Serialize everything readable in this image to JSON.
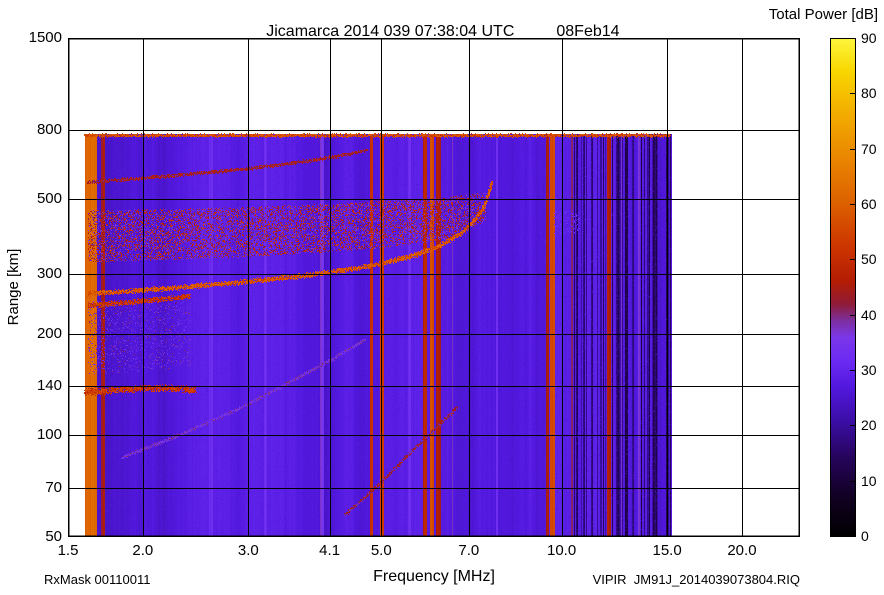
{
  "header": {
    "title": "Jicamarca 2014 039 07:38:04 UTC",
    "date": "08Feb14",
    "colorbar_title": "Total Power [dB]"
  },
  "footer": {
    "rxmask": "RxMask 00110011",
    "frequency_label": "Frequency [MHz]",
    "filename": "VIPIR  JM91J_2014039073804.RIQ"
  },
  "chart_data": {
    "type": "heatmap",
    "title": "Jicamarca 2014 039 07:38:04 UTC  08Feb14",
    "xlabel": "Frequency [MHz]",
    "ylabel": "Range [km]",
    "x_scale": "log",
    "y_scale": "log",
    "xlim": [
      1.5,
      25
    ],
    "ylim": [
      50,
      1500
    ],
    "x_ticks": [
      2.0,
      3.0,
      4.1,
      5.0,
      7.0,
      10.0,
      15.0,
      20.0
    ],
    "x_tick_labels": [
      "2.0",
      "3.0",
      "4.1",
      "5.0",
      "7.0",
      "10.0",
      "15.0",
      "20.0"
    ],
    "x_edge_tick": 1.5,
    "x_edge_tick_label": "1.5",
    "y_ticks": [
      70,
      100,
      140,
      200,
      300,
      500,
      800
    ],
    "y_tick_labels": [
      "70",
      "100",
      "140",
      "200",
      "300",
      "500",
      "800"
    ],
    "y_edge_ticks": [
      50,
      1500
    ],
    "y_edge_tick_labels": [
      "50",
      "1500"
    ],
    "grid": true,
    "colorbar": {
      "label": "Total Power [dB]",
      "min": 0,
      "max": 90,
      "ticks": [
        0,
        10,
        20,
        30,
        40,
        50,
        60,
        70,
        80,
        90
      ],
      "stops": [
        [
          0,
          "#000000"
        ],
        [
          7,
          "#110122"
        ],
        [
          14,
          "#250459"
        ],
        [
          21,
          "#3b0ea6"
        ],
        [
          27,
          "#5218de"
        ],
        [
          32,
          "#6c2bf2"
        ],
        [
          36,
          "#7b37e9"
        ],
        [
          39,
          "#7d2f9e"
        ],
        [
          42,
          "#8f1c38"
        ],
        [
          46,
          "#b21c04"
        ],
        [
          52,
          "#cb3300"
        ],
        [
          60,
          "#dc5f00"
        ],
        [
          68,
          "#e98400"
        ],
        [
          76,
          "#f2aa00"
        ],
        [
          84,
          "#f8d600"
        ],
        [
          90,
          "#fdf53c"
        ]
      ]
    },
    "data_extent": {
      "f": [
        1.6,
        15.2
      ],
      "range_km": [
        50,
        780
      ]
    },
    "background_db": 27,
    "features": {
      "stripes": [
        [
          1.6,
          1.68,
          62
        ],
        [
          1.7,
          1.73,
          45
        ],
        [
          2.58,
          2.62,
          33
        ],
        [
          3.18,
          3.22,
          33
        ],
        [
          3.95,
          4.02,
          36
        ],
        [
          4.79,
          4.85,
          50
        ],
        [
          4.98,
          5.05,
          53
        ],
        [
          5.55,
          5.6,
          34
        ],
        [
          5.88,
          5.95,
          48
        ],
        [
          6.02,
          6.12,
          56
        ],
        [
          6.18,
          6.28,
          46
        ],
        [
          6.55,
          6.6,
          36
        ],
        [
          7.78,
          7.84,
          34
        ],
        [
          9.42,
          9.52,
          44
        ],
        [
          9.58,
          9.74,
          56
        ],
        [
          10.38,
          10.44,
          40
        ],
        [
          11.9,
          12.08,
          46
        ],
        [
          12.55,
          12.62,
          38
        ],
        [
          13.4,
          13.5,
          36
        ]
      ],
      "dark_band": {
        "f": [
          10.28,
          15.2
        ],
        "prob": 0.45,
        "db": [
          11,
          22
        ]
      },
      "traces": [
        {
          "pts": [
            [
              1.62,
              262
            ],
            [
              2.2,
              272
            ],
            [
              3.0,
              285
            ],
            [
              3.8,
              298
            ],
            [
              4.6,
              313
            ],
            [
              5.2,
              327
            ],
            [
              5.8,
              345
            ],
            [
              6.3,
              366
            ],
            [
              6.8,
              396
            ],
            [
              7.15,
              430
            ],
            [
              7.4,
              470
            ],
            [
              7.55,
              515
            ],
            [
              7.65,
              560
            ]
          ],
          "db": 58,
          "th": 3
        },
        {
          "pts": [
            [
              1.62,
              242
            ],
            [
              2.0,
              250
            ],
            [
              2.4,
              258
            ]
          ],
          "db": 52,
          "th": 3
        },
        {
          "pts": [
            [
              1.62,
              560
            ],
            [
              2.2,
              585
            ],
            [
              3.0,
              615
            ],
            [
              3.7,
              645
            ],
            [
              4.3,
              672
            ],
            [
              4.75,
              700
            ]
          ],
          "db": 44,
          "th": 2
        },
        {
          "pts": [
            [
              1.6,
              134
            ],
            [
              1.9,
              137
            ],
            [
              2.2,
              138
            ],
            [
              2.45,
              136
            ]
          ],
          "db": 52,
          "th": 4
        },
        {
          "pts": [
            [
              1.85,
              86
            ],
            [
              2.3,
              100
            ],
            [
              2.9,
              120
            ],
            [
              3.5,
              143
            ],
            [
              4.1,
              166
            ],
            [
              4.7,
              192
            ]
          ],
          "db": 36,
          "th": 2
        },
        {
          "pts": [
            [
              4.35,
              58
            ],
            [
              4.9,
              70
            ],
            [
              5.5,
              86
            ],
            [
              6.1,
              103
            ],
            [
              6.7,
              121
            ]
          ],
          "db": 42,
          "th": 2
        },
        {
          "pts": [
            [
              1.6,
              772
            ],
            [
              15.2,
              772
            ]
          ],
          "db": 56,
          "th": 2
        }
      ],
      "bands": [
        {
          "f": [
            1.62,
            7.45
          ],
          "fpts": [
            1.6,
            3.0,
            5.0,
            6.5,
            7.45
          ],
          "lower": [
            325,
            338,
            358,
            382,
            430
          ],
          "upper": [
            462,
            474,
            492,
            508,
            525
          ],
          "density": 0.5,
          "db": [
            34,
            55
          ]
        },
        {
          "f": [
            9.7,
            10.7
          ],
          "fpts": [
            9.7,
            10.7
          ],
          "lower": [
            390,
            400
          ],
          "upper": [
            460,
            465
          ],
          "density": 0.25,
          "db": [
            30,
            34
          ]
        },
        {
          "f": [
            1.62,
            2.4
          ],
          "fpts": [
            1.6,
            2.4
          ],
          "lower": [
            150,
            160
          ],
          "upper": [
            250,
            250
          ],
          "density": 0.12,
          "db": [
            30,
            42
          ]
        }
      ]
    }
  }
}
